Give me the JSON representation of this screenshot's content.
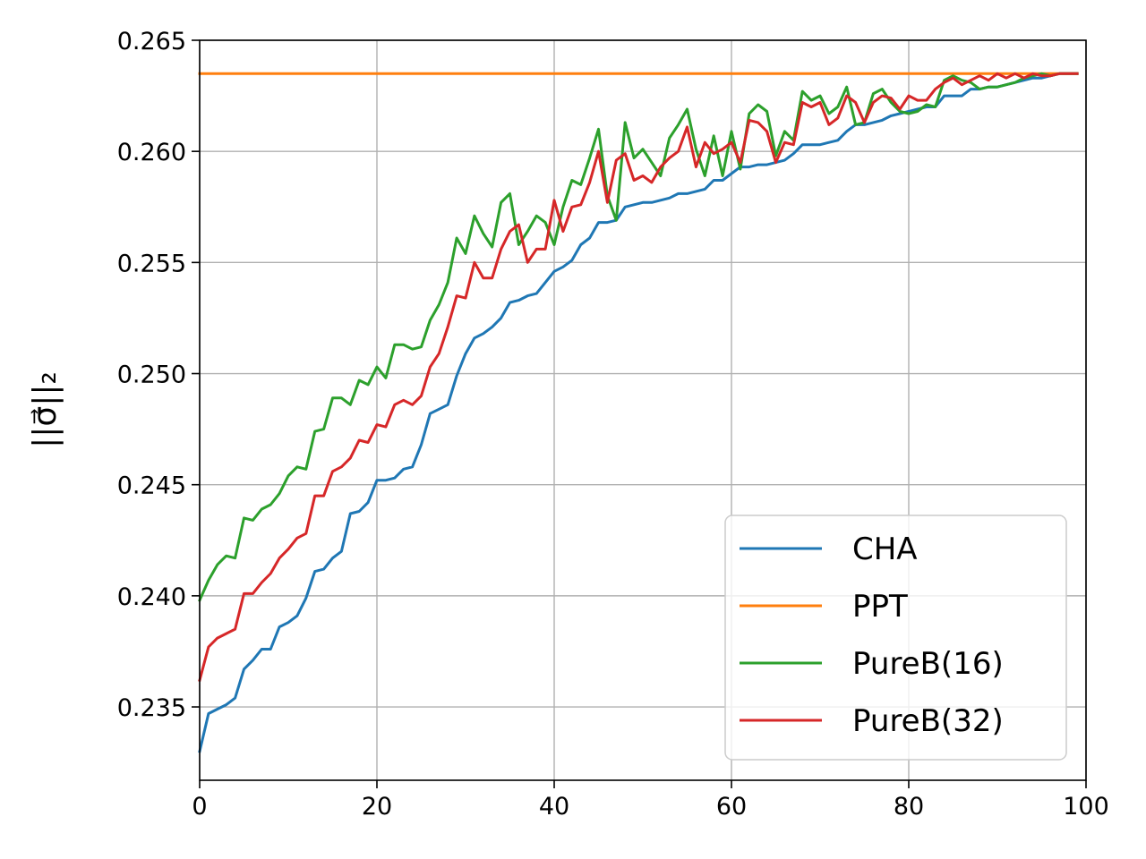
{
  "chart_data": {
    "type": "line",
    "title": "",
    "xlabel": "",
    "ylabel": "||σ⃗||₂",
    "xlim": [
      0,
      100
    ],
    "ylim": [
      0.2317,
      0.265
    ],
    "xticks": [
      0,
      20,
      40,
      60,
      80,
      100
    ],
    "yticks": [
      0.235,
      0.24,
      0.245,
      0.25,
      0.255,
      0.26,
      0.265
    ],
    "xtick_labels": [
      "0",
      "20",
      "40",
      "60",
      "80",
      "100"
    ],
    "ytick_labels": [
      "0.235",
      "0.240",
      "0.245",
      "0.250",
      "0.255",
      "0.260",
      "0.265"
    ],
    "grid": true,
    "legend_position": "lower-right",
    "x": [
      0,
      1,
      2,
      3,
      4,
      5,
      6,
      7,
      8,
      9,
      10,
      11,
      12,
      13,
      14,
      15,
      16,
      17,
      18,
      19,
      20,
      21,
      22,
      23,
      24,
      25,
      26,
      27,
      28,
      29,
      30,
      31,
      32,
      33,
      34,
      35,
      36,
      37,
      38,
      39,
      40,
      41,
      42,
      43,
      44,
      45,
      46,
      47,
      48,
      49,
      50,
      51,
      52,
      53,
      54,
      55,
      56,
      57,
      58,
      59,
      60,
      61,
      62,
      63,
      64,
      65,
      66,
      67,
      68,
      69,
      70,
      71,
      72,
      73,
      74,
      75,
      76,
      77,
      78,
      79,
      80,
      81,
      82,
      83,
      84,
      85,
      86,
      87,
      88,
      89,
      90,
      91,
      92,
      93,
      94,
      95,
      96,
      97,
      98,
      99
    ],
    "series": [
      {
        "name": "CHA",
        "color": "#1f77b4",
        "values": [
          0.233,
          0.2347,
          0.2349,
          0.2351,
          0.2354,
          0.2367,
          0.2371,
          0.2376,
          0.2376,
          0.2386,
          0.2388,
          0.2391,
          0.2399,
          0.2411,
          0.2412,
          0.2417,
          0.242,
          0.2437,
          0.2438,
          0.2442,
          0.2452,
          0.2452,
          0.2453,
          0.2457,
          0.2458,
          0.2468,
          0.2482,
          0.2484,
          0.2486,
          0.2499,
          0.2509,
          0.2516,
          0.2518,
          0.2521,
          0.2525,
          0.2532,
          0.2533,
          0.2535,
          0.2536,
          0.2541,
          0.2546,
          0.2548,
          0.2551,
          0.2558,
          0.2561,
          0.2568,
          0.2568,
          0.2569,
          0.2575,
          0.2576,
          0.2577,
          0.2577,
          0.2578,
          0.2579,
          0.2581,
          0.2581,
          0.2582,
          0.2583,
          0.2587,
          0.2587,
          0.259,
          0.2593,
          0.2593,
          0.2594,
          0.2594,
          0.2595,
          0.2596,
          0.2599,
          0.2603,
          0.2603,
          0.2603,
          0.2604,
          0.2605,
          0.2609,
          0.2612,
          0.2612,
          0.2613,
          0.2614,
          0.2616,
          0.2617,
          0.2618,
          0.2619,
          0.262,
          0.262,
          0.2625,
          0.2625,
          0.2625,
          0.2628,
          0.2628,
          0.2629,
          0.2629,
          0.263,
          0.2631,
          0.2632,
          0.2633,
          0.2633,
          0.2634,
          0.2635,
          0.2635,
          0.2635
        ]
      },
      {
        "name": "PPT",
        "color": "#ff7f0e",
        "values": [
          0.2635,
          0.2635,
          0.2635,
          0.2635,
          0.2635,
          0.2635,
          0.2635,
          0.2635,
          0.2635,
          0.2635,
          0.2635,
          0.2635,
          0.2635,
          0.2635,
          0.2635,
          0.2635,
          0.2635,
          0.2635,
          0.2635,
          0.2635,
          0.2635,
          0.2635,
          0.2635,
          0.2635,
          0.2635,
          0.2635,
          0.2635,
          0.2635,
          0.2635,
          0.2635,
          0.2635,
          0.2635,
          0.2635,
          0.2635,
          0.2635,
          0.2635,
          0.2635,
          0.2635,
          0.2635,
          0.2635,
          0.2635,
          0.2635,
          0.2635,
          0.2635,
          0.2635,
          0.2635,
          0.2635,
          0.2635,
          0.2635,
          0.2635,
          0.2635,
          0.2635,
          0.2635,
          0.2635,
          0.2635,
          0.2635,
          0.2635,
          0.2635,
          0.2635,
          0.2635,
          0.2635,
          0.2635,
          0.2635,
          0.2635,
          0.2635,
          0.2635,
          0.2635,
          0.2635,
          0.2635,
          0.2635,
          0.2635,
          0.2635,
          0.2635,
          0.2635,
          0.2635,
          0.2635,
          0.2635,
          0.2635,
          0.2635,
          0.2635,
          0.2635,
          0.2635,
          0.2635,
          0.2635,
          0.2635,
          0.2635,
          0.2635,
          0.2635,
          0.2635,
          0.2635,
          0.2635,
          0.2635,
          0.2635,
          0.2635,
          0.2635,
          0.2635,
          0.2635,
          0.2635,
          0.2635,
          0.2635
        ]
      },
      {
        "name": "PureB(16)",
        "color": "#2ca02c",
        "values": [
          0.2398,
          0.2407,
          0.2414,
          0.2418,
          0.2417,
          0.2435,
          0.2434,
          0.2439,
          0.2441,
          0.2446,
          0.2454,
          0.2458,
          0.2457,
          0.2474,
          0.2475,
          0.2489,
          0.2489,
          0.2486,
          0.2497,
          0.2495,
          0.2503,
          0.2498,
          0.2513,
          0.2513,
          0.2511,
          0.2512,
          0.2524,
          0.2531,
          0.2541,
          0.2561,
          0.2554,
          0.2571,
          0.2563,
          0.2557,
          0.2577,
          0.2581,
          0.2558,
          0.2564,
          0.2571,
          0.2568,
          0.2558,
          0.2575,
          0.2587,
          0.2585,
          0.2597,
          0.261,
          0.258,
          0.2569,
          0.2613,
          0.2597,
          0.2601,
          0.2595,
          0.2589,
          0.2606,
          0.2612,
          0.2619,
          0.2601,
          0.2589,
          0.2607,
          0.2589,
          0.2609,
          0.2592,
          0.2617,
          0.2621,
          0.2618,
          0.2598,
          0.2609,
          0.2605,
          0.2627,
          0.2623,
          0.2625,
          0.2617,
          0.262,
          0.2629,
          0.2612,
          0.2613,
          0.2626,
          0.2628,
          0.2622,
          0.2618,
          0.2617,
          0.2618,
          0.2621,
          0.262,
          0.2632,
          0.2634,
          0.2632,
          0.2631,
          0.2628,
          0.2629,
          0.2629,
          0.263,
          0.2631,
          0.2633,
          0.2634,
          0.2635,
          0.2634,
          0.2635,
          0.2635,
          0.2635
        ]
      },
      {
        "name": "PureB(32)",
        "color": "#d62728",
        "values": [
          0.2362,
          0.2377,
          0.2381,
          0.2383,
          0.2385,
          0.2401,
          0.2401,
          0.2406,
          0.241,
          0.2417,
          0.2421,
          0.2426,
          0.2428,
          0.2445,
          0.2445,
          0.2456,
          0.2458,
          0.2462,
          0.247,
          0.2469,
          0.2477,
          0.2476,
          0.2486,
          0.2488,
          0.2486,
          0.249,
          0.2503,
          0.2509,
          0.2521,
          0.2535,
          0.2534,
          0.255,
          0.2543,
          0.2543,
          0.2556,
          0.2564,
          0.2567,
          0.255,
          0.2556,
          0.2556,
          0.2578,
          0.2564,
          0.2575,
          0.2576,
          0.2586,
          0.26,
          0.2577,
          0.2596,
          0.2599,
          0.2587,
          0.2589,
          0.2586,
          0.2593,
          0.2597,
          0.26,
          0.2611,
          0.2593,
          0.2604,
          0.2599,
          0.2601,
          0.2604,
          0.2595,
          0.2614,
          0.2613,
          0.2609,
          0.2595,
          0.2604,
          0.2603,
          0.2622,
          0.262,
          0.2622,
          0.2612,
          0.2615,
          0.2625,
          0.2622,
          0.2613,
          0.2622,
          0.2625,
          0.2624,
          0.2619,
          0.2625,
          0.2623,
          0.2623,
          0.2628,
          0.2631,
          0.2633,
          0.263,
          0.2632,
          0.2634,
          0.2632,
          0.2635,
          0.2633,
          0.2635,
          0.2633,
          0.2635,
          0.2634,
          0.2634,
          0.2635,
          0.2635,
          0.2635
        ]
      }
    ]
  }
}
